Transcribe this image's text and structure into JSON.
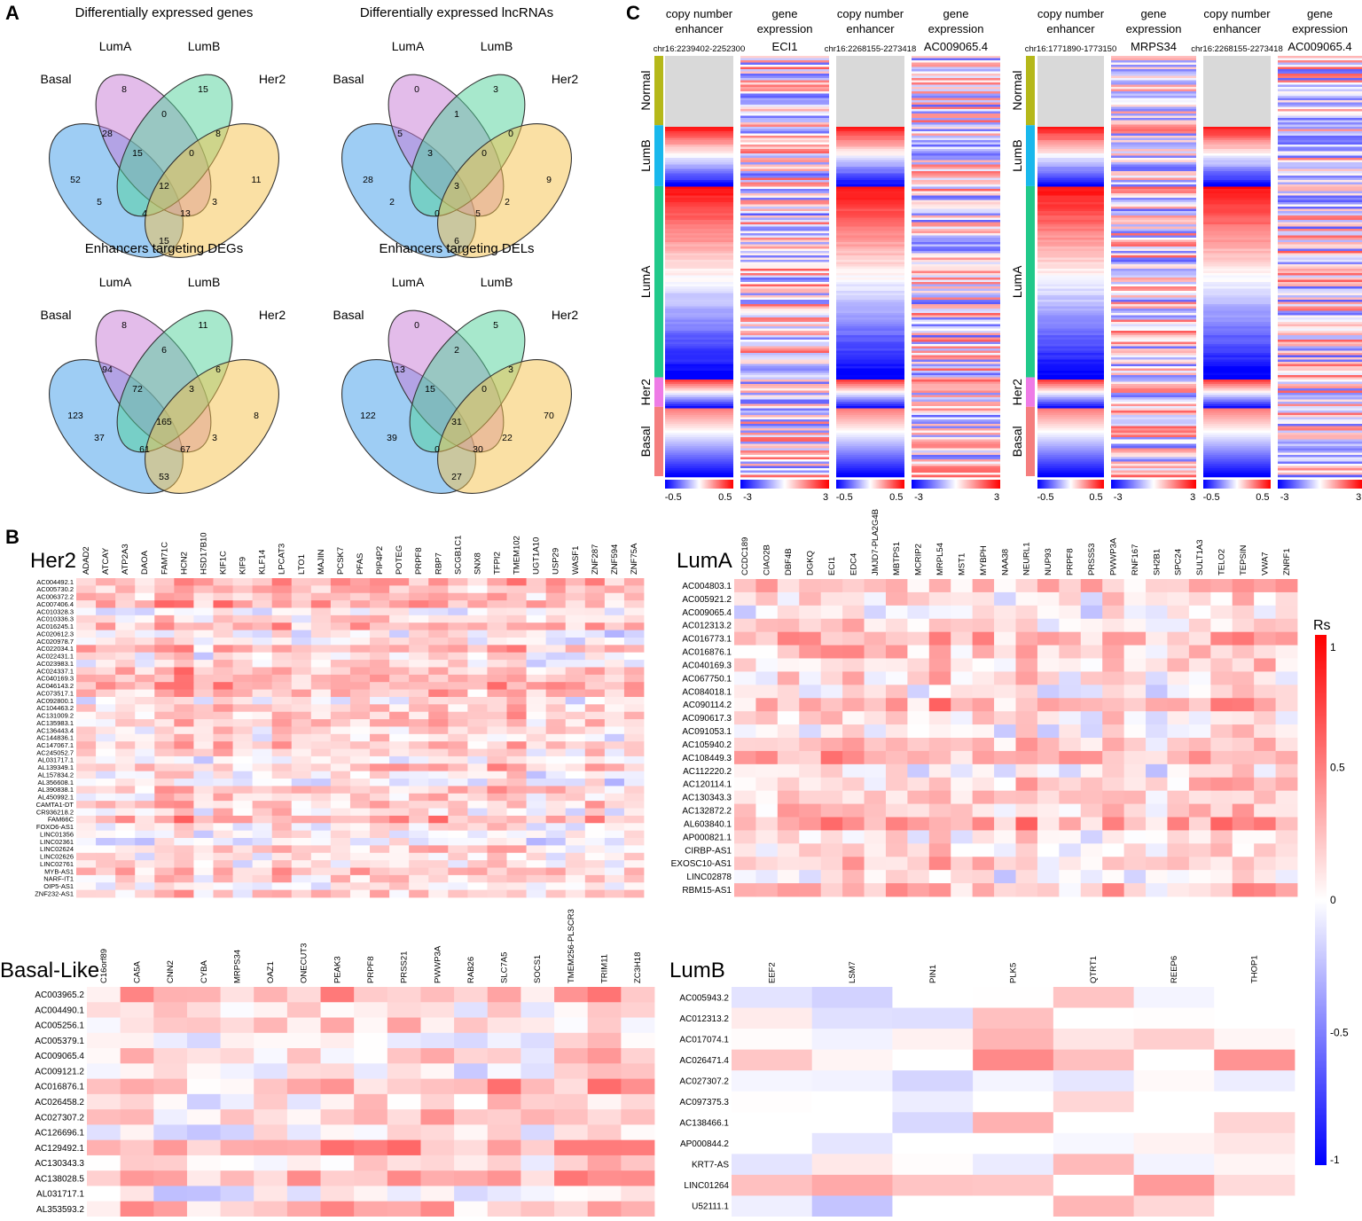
{
  "panelA": {
    "letter": "A",
    "groups": [
      "Basal",
      "LumA",
      "LumB",
      "Her2"
    ],
    "colors": [
      "#3d9be9",
      "#c77ad6",
      "#4fd19a",
      "#f6c24a"
    ],
    "region_order": [
      "B",
      "A",
      "L",
      "H",
      "BA",
      "AL",
      "LH",
      "BL",
      "AH",
      "BH",
      "BAL",
      "ALH",
      "BAH",
      "BLH",
      "BALH"
    ],
    "venns": [
      {
        "title": "Differentially expressed genes",
        "counts": [
          52,
          8,
          15,
          11,
          28,
          0,
          8,
          5,
          3,
          15,
          15,
          0,
          13,
          4,
          12
        ]
      },
      {
        "title": "Differentially expressed lncRNAs",
        "counts": [
          28,
          0,
          3,
          9,
          5,
          1,
          0,
          2,
          2,
          6,
          3,
          0,
          5,
          0,
          3
        ]
      },
      {
        "title": "Enhancers targeting DEGs",
        "counts": [
          123,
          8,
          11,
          8,
          94,
          6,
          6,
          37,
          3,
          53,
          72,
          3,
          67,
          61,
          165
        ]
      },
      {
        "title": "Enhancers targeting DELs",
        "counts": [
          122,
          0,
          5,
          70,
          13,
          2,
          3,
          39,
          22,
          27,
          15,
          0,
          30,
          0,
          31
        ]
      }
    ]
  },
  "panelC": {
    "letter": "C",
    "subtypes": [
      "Normal",
      "LumB",
      "LumA",
      "Her2",
      "Basal"
    ],
    "subtype_colors": [
      "#b5b81a",
      "#19b8ec",
      "#21c98a",
      "#ee7be6",
      "#f57e7e"
    ],
    "blocks": [
      {
        "cn_header": "copy number enhancer",
        "cn_region": "chr16:2239402-2252300",
        "ge_header": "gene expression",
        "gene": "ECI1"
      },
      {
        "cn_header": "copy number enhancer",
        "cn_region": "chr16:2268155-2273418",
        "ge_header": "gene expression",
        "gene": "AC009065.4"
      },
      {
        "cn_header": "copy number enhancer",
        "cn_region": "chr16:1771890-1773150",
        "ge_header": "gene expression",
        "gene": "MRPS34"
      },
      {
        "cn_header": "copy number enhancer",
        "cn_region": "chr16:2268155-2273418",
        "ge_header": "gene expression",
        "gene": "AC009065.4"
      }
    ],
    "cn_scale": [
      "-0.5",
      "0.5"
    ],
    "ge_scale": [
      "-3",
      "3"
    ]
  },
  "panelB": {
    "letter": "B",
    "legend": {
      "title": "Rs",
      "ticks": [
        "1",
        "0.5",
        "0",
        "-0.5",
        "-1"
      ],
      "max_color": "#ff0000",
      "min_color": "#0000ff"
    },
    "heatmaps": [
      {
        "title": "Her2",
        "cols": [
          "ADAD2",
          "ATCAY",
          "ATP2A3",
          "DAOA",
          "FAM71C",
          "HCN2",
          "HSD17B10",
          "KIF1C",
          "KIF9",
          "KLF14",
          "LPCAT3",
          "LTO1",
          "MAJIN",
          "PCSK7",
          "PFAS",
          "PIP4P2",
          "POTEG",
          "PRPF8",
          "RBP7",
          "SCGB1C1",
          "SNX8",
          "TFPI2",
          "TMEM102",
          "UGT1A10",
          "USP29",
          "WASF1",
          "ZNF287",
          "ZNF594",
          "ZNF75A"
        ],
        "rows": [
          "AC004492.1",
          "AC005730.2",
          "AC006372.2",
          "AC007406.4",
          "AC010328.3",
          "AC010336.3",
          "AC016245.1",
          "AC020612.3",
          "AC020978.7",
          "AC022034.1",
          "AC022431.1",
          "AC023983.1",
          "AC024337.1",
          "AC040169.3",
          "AC046143.2",
          "AC073517.1",
          "AC092800.1",
          "AC104463.2",
          "AC131009.2",
          "AC135983.1",
          "AC136443.4",
          "AC144836.1",
          "AC147067.1",
          "AC245052.7",
          "AL031717.1",
          "AL139349.1",
          "AL157834.2",
          "AL356608.1",
          "AL390838.1",
          "AL450992.1",
          "CAMTA1-DT",
          "CR936218.2",
          "FAM66C",
          "FOXO6-AS1",
          "LINC01356",
          "LINC02361",
          "LINC02624",
          "LINC02626",
          "LINC02761",
          "MYB-AS1",
          "NARF-IT1",
          "OIP5-AS1",
          "ZNF232-AS1"
        ]
      },
      {
        "title": "LumA",
        "cols": [
          "CCDC189",
          "CIAO2B",
          "DBF4B",
          "DGKQ",
          "ECI1",
          "EDC4",
          "JMJD7-PLA2G4B",
          "MBTPS1",
          "MCRIP2",
          "MRPL54",
          "MST1",
          "MYBPH",
          "NAA38",
          "NEURL1",
          "NUP93",
          "PRPF8",
          "PRSS53",
          "PWWP3A",
          "RNF167",
          "SH2B1",
          "SPC24",
          "SULT1A3",
          "TELO2",
          "TEPSIN",
          "VWA7",
          "ZNRF1"
        ],
        "rows": [
          "AC004803.1",
          "AC005921.2",
          "AC009065.4",
          "AC012313.2",
          "AC016773.1",
          "AC016876.1",
          "AC040169.3",
          "AC067750.1",
          "AC084018.1",
          "AC090114.2",
          "AC090617.3",
          "AC091053.1",
          "AC105940.2",
          "AC108449.3",
          "AC112220.2",
          "AC120114.1",
          "AC130343.3",
          "AC132872.2",
          "AL603840.1",
          "AP000821.1",
          "CIRBP-AS1",
          "EXOSC10-AS1",
          "LINC02878",
          "RBM15-AS1"
        ]
      },
      {
        "title": "Basal-Like",
        "cols": [
          "C16orf89",
          "CA5A",
          "CNN2",
          "CYBA",
          "MRPS34",
          "OAZ1",
          "ONECUT3",
          "PEAK3",
          "PRPF8",
          "PRSS21",
          "PWWP3A",
          "RAB26",
          "SLC7A5",
          "SOCS1",
          "TMEM256-PLSCR3",
          "TRIM11",
          "ZC3H18"
        ],
        "rows": [
          "AC003965.2",
          "AC004490.1",
          "AC005256.1",
          "AC005379.1",
          "AC009065.4",
          "AC009121.2",
          "AC016876.1",
          "AC026458.2",
          "AC027307.2",
          "AC126696.1",
          "AC129492.1",
          "AC130343.3",
          "AC138028.5",
          "AL031717.1",
          "AL353593.2"
        ]
      },
      {
        "title": "LumB",
        "cols": [
          "EEF2",
          "LSM7",
          "PIN1",
          "PLK5",
          "QTRT1",
          "REEP6",
          "THOP1"
        ],
        "rows": [
          "AC005943.2",
          "AC012313.2",
          "AC017074.1",
          "AC026471.4",
          "AC027307.2",
          "AC097375.3",
          "AC138466.1",
          "AP000844.2",
          "KRT7-AS",
          "LINC01264",
          "U52111.1"
        ]
      }
    ]
  }
}
